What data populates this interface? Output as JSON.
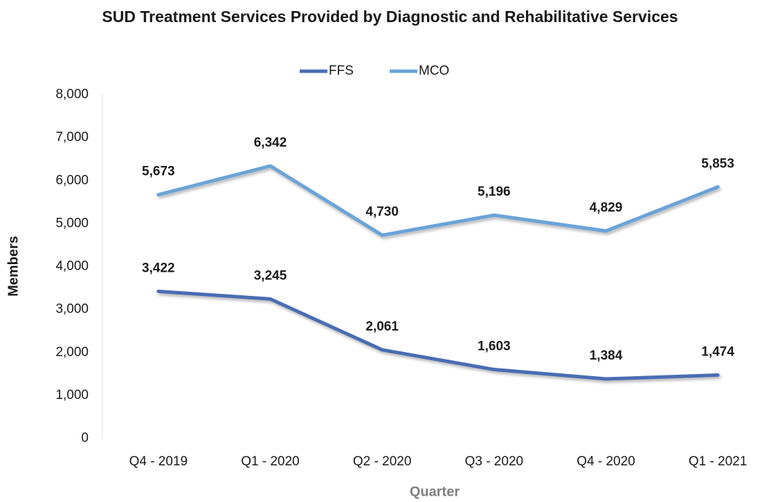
{
  "chart_data": {
    "type": "line",
    "title": "SUD Treatment Services Provided by Diagnostic and Rehabilitative Services",
    "xlabel": "Quarter",
    "ylabel": "Members",
    "categories": [
      "Q4 - 2019",
      "Q1 - 2020",
      "Q2 - 2020",
      "Q3 - 2020",
      "Q4 - 2020",
      "Q1 - 2021"
    ],
    "series": [
      {
        "name": "FFS",
        "color": "#4a6db3",
        "values": [
          3422,
          3245,
          2061,
          1603,
          1384,
          1474
        ],
        "value_labels": [
          "3,422",
          "3,245",
          "2,061",
          "1,603",
          "1,384",
          "1,474"
        ]
      },
      {
        "name": "MCO",
        "color": "#6aa3d8",
        "values": [
          5673,
          6342,
          4730,
          5196,
          4829,
          5853
        ],
        "value_labels": [
          "5,673",
          "6,342",
          "4,730",
          "5,196",
          "4,829",
          "5,853"
        ]
      }
    ],
    "ylim": [
      0,
      8000
    ],
    "yticks": [
      0,
      {
        "value": 1000,
        "label": "1,000"
      },
      {
        "value": 2000,
        "label": "2,000"
      },
      {
        "value": 3000,
        "label": "3,000"
      },
      {
        "value": 4000,
        "label": "4,000"
      },
      {
        "value": 5000,
        "label": "5,000"
      },
      {
        "value": 6000,
        "label": "6,000"
      },
      {
        "value": 7000,
        "label": "7,000"
      },
      {
        "value": 8000,
        "label": "8,000"
      }
    ],
    "grid": false,
    "legend": "top"
  }
}
